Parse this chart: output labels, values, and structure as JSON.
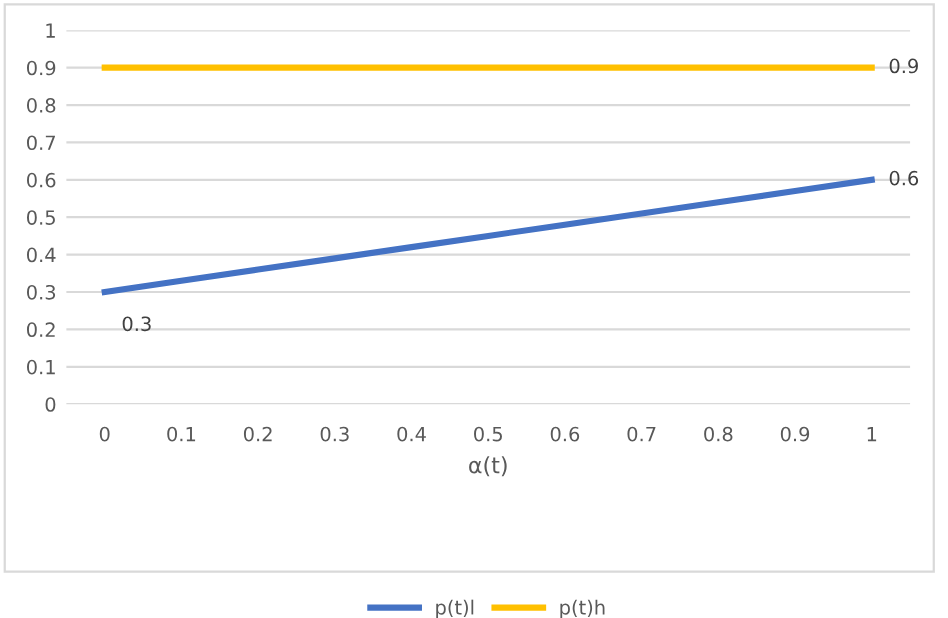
{
  "chart_data": {
    "type": "line",
    "xlabel": "α(t)",
    "categories": [
      "0",
      "0.1",
      "0.2",
      "0.3",
      "0.4",
      "0.5",
      "0.6",
      "0.7",
      "0.8",
      "0.9",
      "1"
    ],
    "series": [
      {
        "name": "p(t)l",
        "color": "#4472c4",
        "values": [
          0.3,
          0.33,
          0.36,
          0.39,
          0.42,
          0.45,
          0.48,
          0.51,
          0.54,
          0.57,
          0.6
        ],
        "value_labels": [
          "0.3",
          null,
          null,
          null,
          null,
          null,
          null,
          null,
          null,
          null,
          "0.6"
        ]
      },
      {
        "name": "p(t)h",
        "color": "#ffc000",
        "values": [
          0.9,
          0.9,
          0.9,
          0.9,
          0.9,
          0.9,
          0.9,
          0.9,
          0.9,
          0.9,
          0.9
        ],
        "value_labels": [
          null,
          null,
          null,
          null,
          null,
          null,
          null,
          null,
          null,
          null,
          "0.9"
        ]
      }
    ],
    "ylim": [
      0,
      1
    ],
    "yticks": [
      0,
      0.1,
      0.2,
      0.3,
      0.4,
      0.5,
      0.6,
      0.7,
      0.8,
      0.9,
      1
    ],
    "grid": "y",
    "legend": "bottom",
    "marker": "none",
    "line_style": "solid"
  }
}
